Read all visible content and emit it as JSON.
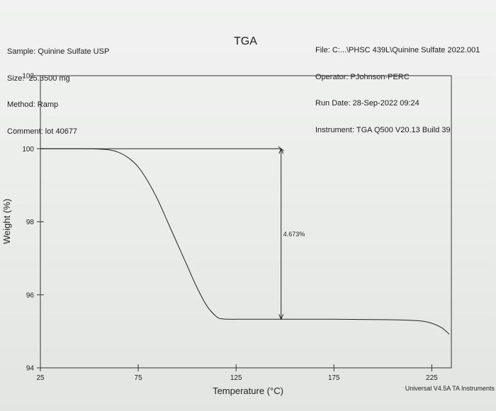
{
  "header": {
    "title": "TGA",
    "left": {
      "sample": "Sample: Quinine Sulfate USP",
      "size": "Size:  25.3500 mg",
      "method": "Method: Ramp",
      "comment": "Comment: lot 40677"
    },
    "right": {
      "file": "File: C:...\\PHSC 439L\\Quinine Sulfate 2022.001",
      "operator": "Operator: PJohnson-PERC",
      "run_date": "Run Date: 28-Sep-2022 09:24",
      "instrument": "Instrument: TGA Q500 V20.13 Build 39"
    }
  },
  "footer": "Universal V4.5A TA Instruments",
  "chart_data": {
    "type": "line",
    "title": "TGA",
    "xlabel": "Temperature (°C)",
    "ylabel": "Weight (%)",
    "xlim": [
      25,
      235
    ],
    "ylim": [
      94,
      102
    ],
    "xticks": [
      25,
      75,
      125,
      175,
      225
    ],
    "yticks": [
      94,
      96,
      98,
      100,
      102
    ],
    "grid": false,
    "series": [
      {
        "x": [
          25,
          35,
          45,
          55,
          60,
          65,
          70,
          75,
          80,
          85,
          90,
          95,
          100,
          105,
          110,
          115,
          118,
          122,
          125,
          135,
          150,
          175,
          200,
          210,
          220,
          225,
          230,
          234
        ],
        "y": [
          100.0,
          100.0,
          100.0,
          99.99,
          99.97,
          99.9,
          99.75,
          99.5,
          99.1,
          98.6,
          98.0,
          97.4,
          96.8,
          96.2,
          95.7,
          95.4,
          95.34,
          95.33,
          95.33,
          95.33,
          95.33,
          95.33,
          95.32,
          95.31,
          95.28,
          95.22,
          95.1,
          94.92
        ]
      }
    ],
    "annotations": [
      {
        "text": "4.673%",
        "x": 148,
        "y_top": 100.0,
        "y_bottom": 95.33
      }
    ]
  }
}
